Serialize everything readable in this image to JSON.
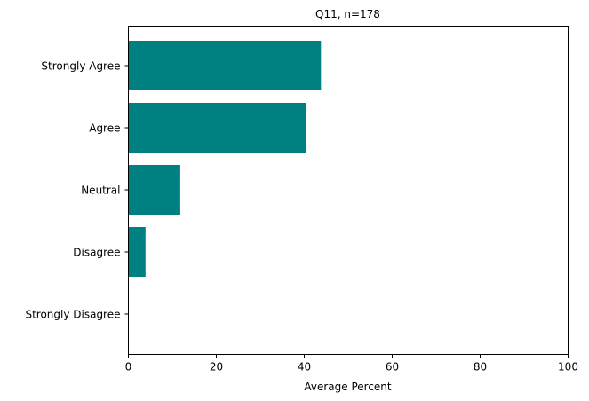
{
  "chart_data": {
    "type": "bar",
    "orientation": "horizontal",
    "title": "Q11, n=178",
    "xlabel": "Average Percent",
    "ylabel": "",
    "categories": [
      "Strongly Agree",
      "Agree",
      "Neutral",
      "Disagree",
      "Strongly Disagree"
    ],
    "values": [
      43.8,
      40.4,
      11.8,
      3.9,
      0
    ],
    "xlim": [
      0,
      100
    ],
    "xticks": [
      "0",
      "20",
      "40",
      "60",
      "80",
      "100"
    ],
    "grid": false,
    "legend": "none",
    "bar_color": "#008080"
  }
}
